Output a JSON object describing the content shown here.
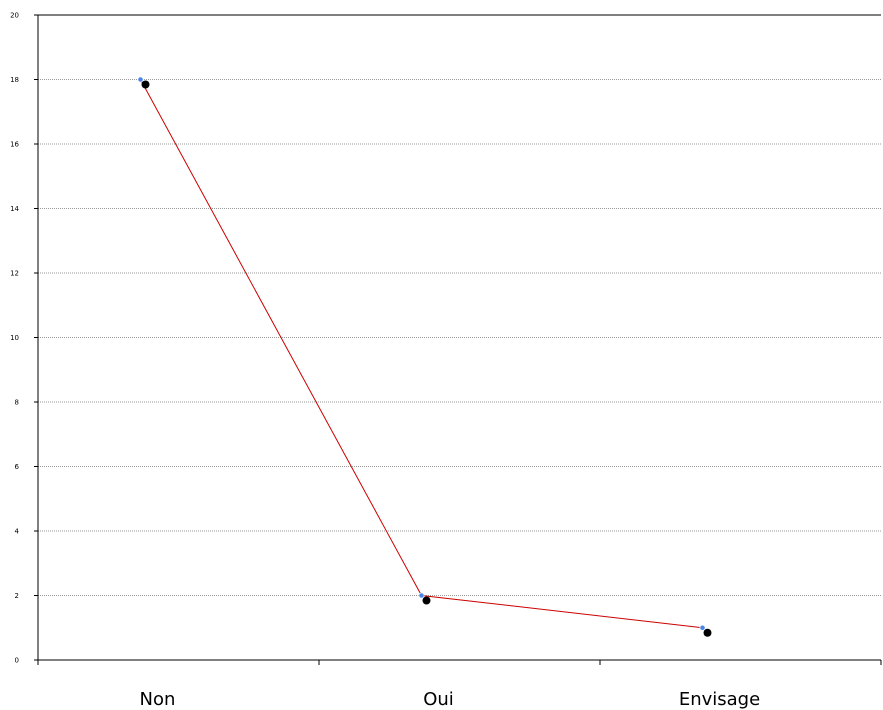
{
  "chart_data": {
    "type": "line",
    "categories": [
      "Non",
      "Oui",
      "Envisage"
    ],
    "series": [
      {
        "values": [
          18,
          2,
          1
        ]
      }
    ],
    "ylim": [
      0,
      20
    ],
    "yticks": [
      "0",
      "2",
      "4",
      "6",
      "8",
      "10",
      "12",
      "14",
      "16",
      "18",
      "20"
    ],
    "grid": true,
    "legend": "none",
    "colors": {
      "line": "#cc0000",
      "marker": "#4a86e8",
      "marker_shadow": "#000000",
      "grid": "#9a9a9a"
    }
  }
}
